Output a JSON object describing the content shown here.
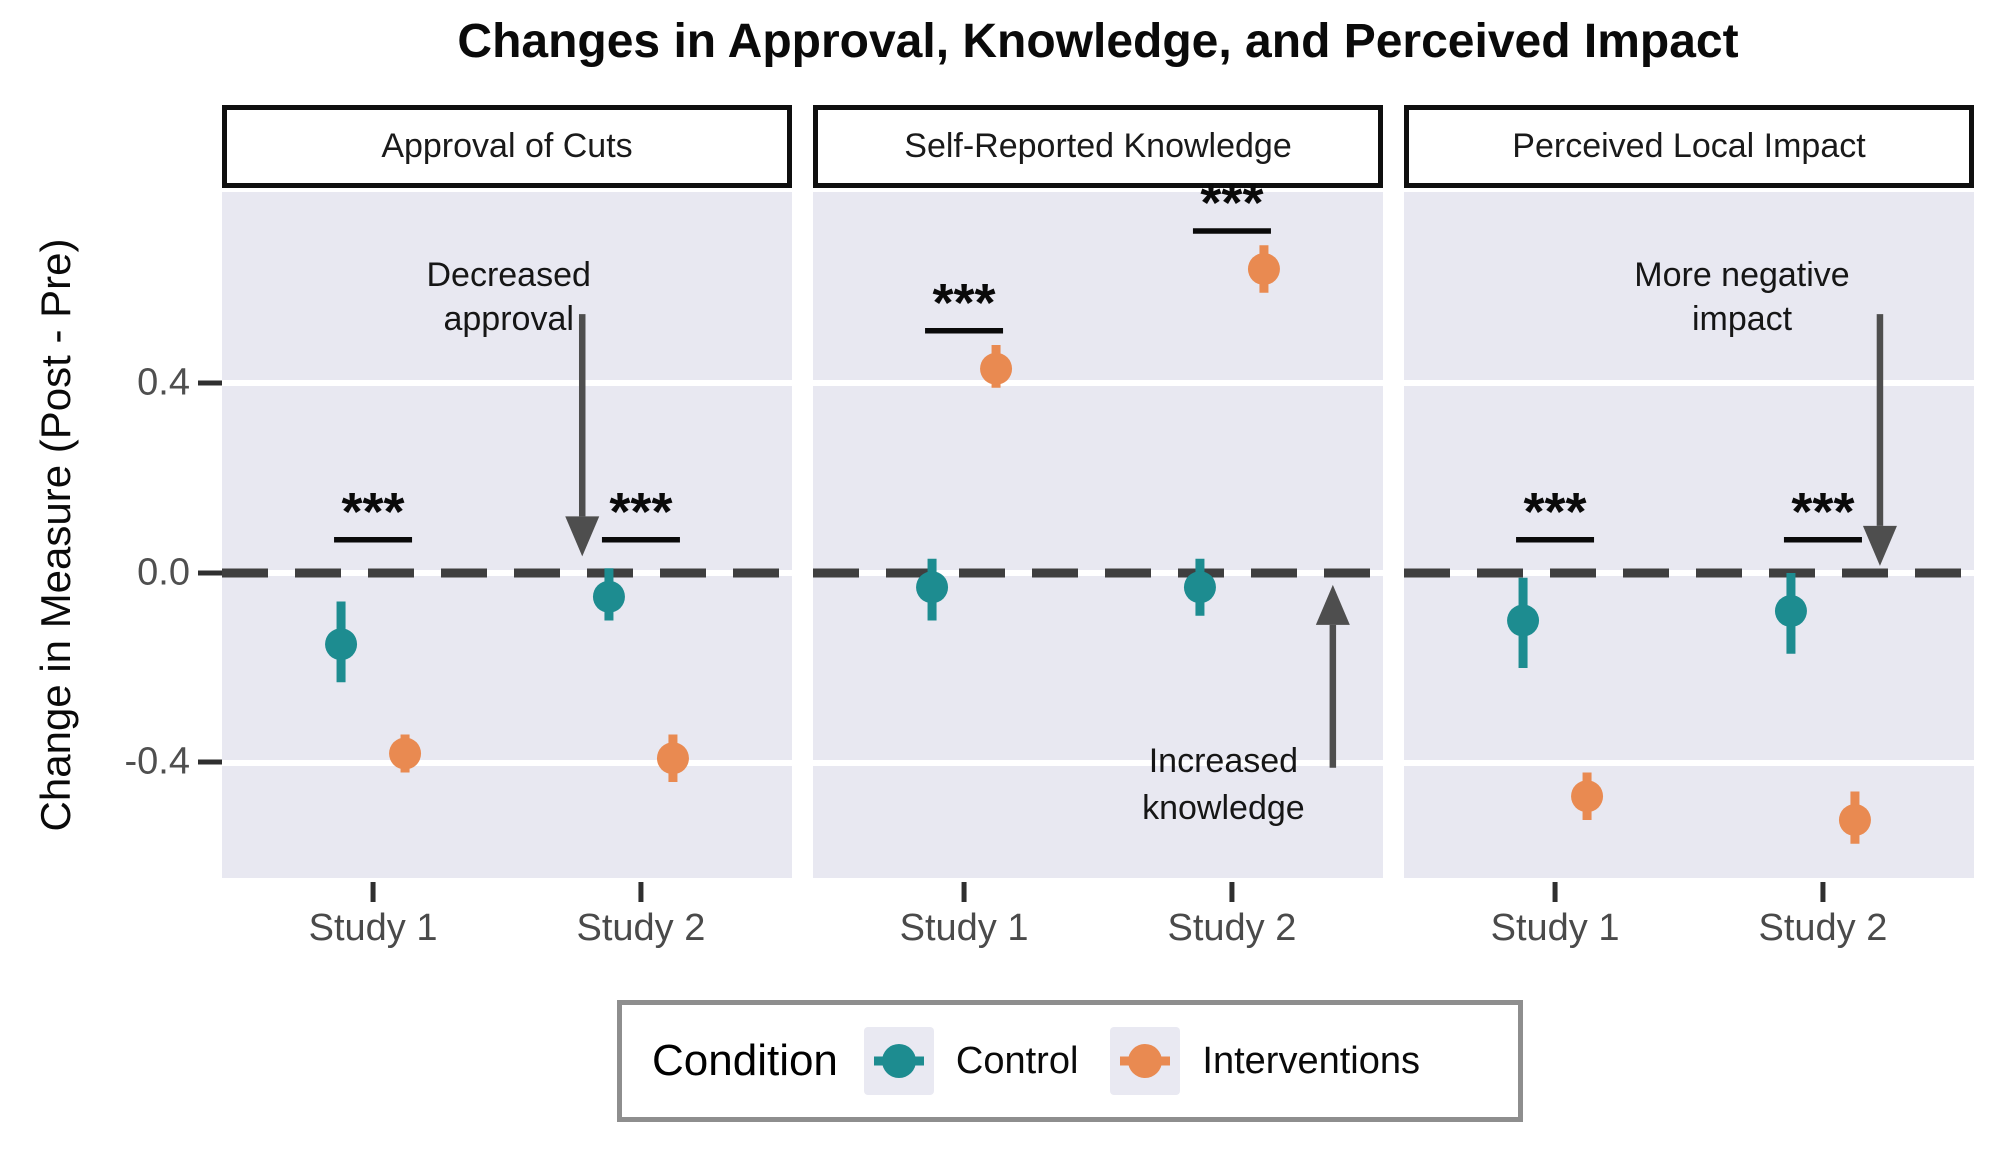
{
  "title": "Changes in Approval, Knowledge, and Perceived Impact",
  "y_axis": {
    "label": "Change in Measure (Post - Pre)",
    "tick_labels": [
      "0.4",
      "0.0",
      "-0.4"
    ],
    "tick_values": [
      0.4,
      0.0,
      -0.4
    ]
  },
  "x_axis": {
    "categories": [
      "Study 1",
      "Study 2"
    ]
  },
  "legend": {
    "title": "Condition",
    "entries": [
      {
        "label": "Control",
        "color": "#1d8c90"
      },
      {
        "label": "Interventions",
        "color": "#e98a51"
      }
    ]
  },
  "colors": {
    "panel_bg": "#e8e8f1",
    "gridline": "#ffffff",
    "zero_line": "#3f3f3f",
    "annotation_arrow": "#4e4e4e",
    "annotation_text": "#161616",
    "significance": "#0a0a0a",
    "axis_text": "#4a4a4a",
    "control": "#1d8c90",
    "interventions": "#e98a51"
  },
  "chart_data": {
    "type": "pointrange",
    "title": "Changes in Approval, Knowledge, and Perceived Impact",
    "ylabel": "Change in Measure (Post - Pre)",
    "ylim": [
      -0.64,
      0.8
    ],
    "y_gridlines": [
      0.4,
      0.0,
      -0.4
    ],
    "zero_reference_line": 0.0,
    "grid": "major-only",
    "legend_position": "bottom",
    "categories": [
      "Study 1",
      "Study 2"
    ],
    "series_names": [
      "Control",
      "Interventions"
    ],
    "panels": [
      {
        "title": "Approval of Cuts",
        "series": [
          {
            "name": "Control",
            "color": "#1d8c90",
            "points": [
              {
                "x": "Study 1",
                "y": -0.15,
                "lo": -0.23,
                "hi": -0.06
              },
              {
                "x": "Study 2",
                "y": -0.05,
                "lo": -0.1,
                "hi": 0.01
              }
            ]
          },
          {
            "name": "Interventions",
            "color": "#e98a51",
            "points": [
              {
                "x": "Study 1",
                "y": -0.38,
                "lo": -0.42,
                "hi": -0.34
              },
              {
                "x": "Study 2",
                "y": -0.39,
                "lo": -0.44,
                "hi": -0.34
              }
            ]
          }
        ],
        "significance": [
          {
            "x": "Study 1",
            "label": "***",
            "line_y": 0.07
          },
          {
            "x": "Study 2",
            "label": "***",
            "line_y": 0.07
          }
        ],
        "annotation": {
          "lines": [
            "Decreased",
            "approval"
          ],
          "x_frac": 0.503,
          "line_y": [
            0.63,
            0.537
          ],
          "arrow": {
            "x_frac": 0.632,
            "from_y": 0.545,
            "to_y": 0.035
          }
        }
      },
      {
        "title": "Self-Reported Knowledge",
        "series": [
          {
            "name": "Control",
            "color": "#1d8c90",
            "points": [
              {
                "x": "Study 1",
                "y": -0.03,
                "lo": -0.1,
                "hi": 0.03
              },
              {
                "x": "Study 2",
                "y": -0.03,
                "lo": -0.09,
                "hi": 0.03
              }
            ]
          },
          {
            "name": "Interventions",
            "color": "#e98a51",
            "points": [
              {
                "x": "Study 1",
                "y": 0.43,
                "lo": 0.39,
                "hi": 0.48
              },
              {
                "x": "Study 2",
                "y": 0.64,
                "lo": 0.59,
                "hi": 0.69
              }
            ]
          }
        ],
        "significance": [
          {
            "x": "Study 1",
            "label": "***",
            "line_y": 0.51
          },
          {
            "x": "Study 2",
            "label": "***",
            "line_y": 0.72
          }
        ],
        "annotation": {
          "lines": [
            "Increased",
            "knowledge"
          ],
          "x_frac": 0.72,
          "line_y": [
            -0.394,
            -0.493
          ],
          "arrow": {
            "x_frac": 0.912,
            "from_y": -0.41,
            "to_y": -0.025
          }
        }
      },
      {
        "title": "Perceived Local Impact",
        "series": [
          {
            "name": "Control",
            "color": "#1d8c90",
            "points": [
              {
                "x": "Study 1",
                "y": -0.1,
                "lo": -0.2,
                "hi": -0.01
              },
              {
                "x": "Study 2",
                "y": -0.08,
                "lo": -0.17,
                "hi": 0.0
              }
            ]
          },
          {
            "name": "Interventions",
            "color": "#e98a51",
            "points": [
              {
                "x": "Study 1",
                "y": -0.47,
                "lo": -0.52,
                "hi": -0.42
              },
              {
                "x": "Study 2",
                "y": -0.52,
                "lo": -0.57,
                "hi": -0.46
              }
            ]
          }
        ],
        "significance": [
          {
            "x": "Study 1",
            "label": "***",
            "line_y": 0.07
          },
          {
            "x": "Study 2",
            "label": "***",
            "line_y": 0.07
          }
        ],
        "annotation": {
          "lines": [
            "More negative",
            "impact"
          ],
          "x_frac": 0.593,
          "line_y": [
            0.63,
            0.537
          ],
          "arrow": {
            "x_frac": 0.835,
            "from_y": 0.545,
            "to_y": 0.015
          }
        }
      }
    ]
  }
}
